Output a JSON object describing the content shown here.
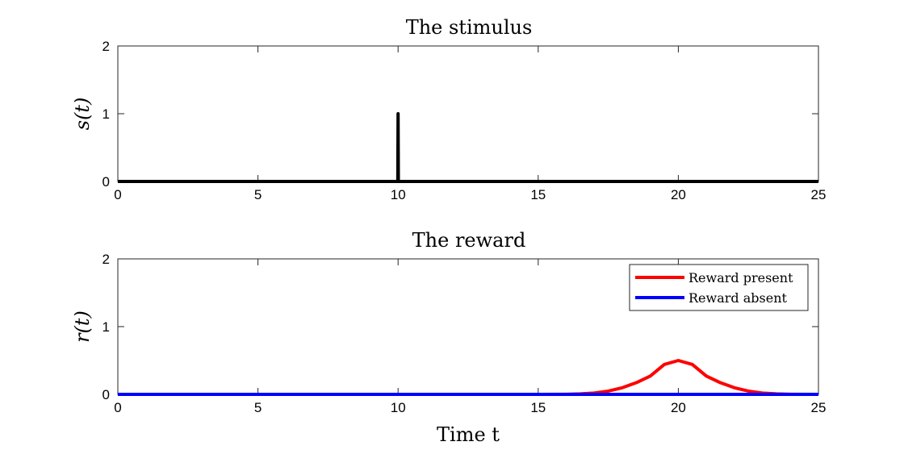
{
  "chart_data": [
    {
      "type": "line",
      "title": "The stimulus",
      "xlabel": "",
      "ylabel": "s(t)",
      "xlim": [
        0,
        25
      ],
      "ylim": [
        0,
        2
      ],
      "xticks": [
        0,
        5,
        10,
        15,
        20,
        25
      ],
      "yticks": [
        0,
        1,
        2
      ],
      "grid": false,
      "series": [
        {
          "color": "#000000",
          "x": [
            0,
            9.99,
            10,
            10.01,
            25
          ],
          "y": [
            0,
            0,
            1,
            0,
            0
          ]
        }
      ]
    },
    {
      "type": "line",
      "title": "The reward",
      "xlabel": "Time t",
      "ylabel": "r(t)",
      "xlim": [
        0,
        25
      ],
      "ylim": [
        0,
        2
      ],
      "xticks": [
        0,
        5,
        10,
        15,
        20,
        25
      ],
      "yticks": [
        0,
        1,
        2
      ],
      "grid": false,
      "legend_position": "top-right",
      "series": [
        {
          "name": "Reward present",
          "color": "#ff0000",
          "x": [
            0,
            15,
            16,
            16.5,
            17,
            17.5,
            18,
            18.5,
            19,
            19.5,
            20,
            20.5,
            21,
            21.5,
            22,
            22.5,
            23,
            23.5,
            24,
            25
          ],
          "y": [
            0,
            0.0,
            0.002,
            0.007,
            0.02,
            0.048,
            0.098,
            0.172,
            0.27,
            0.441,
            0.5,
            0.441,
            0.27,
            0.172,
            0.098,
            0.048,
            0.02,
            0.007,
            0.002,
            0
          ]
        },
        {
          "name": "Reward absent",
          "color": "#0000ff",
          "x": [
            0,
            25
          ],
          "y": [
            0,
            0
          ]
        }
      ]
    }
  ]
}
